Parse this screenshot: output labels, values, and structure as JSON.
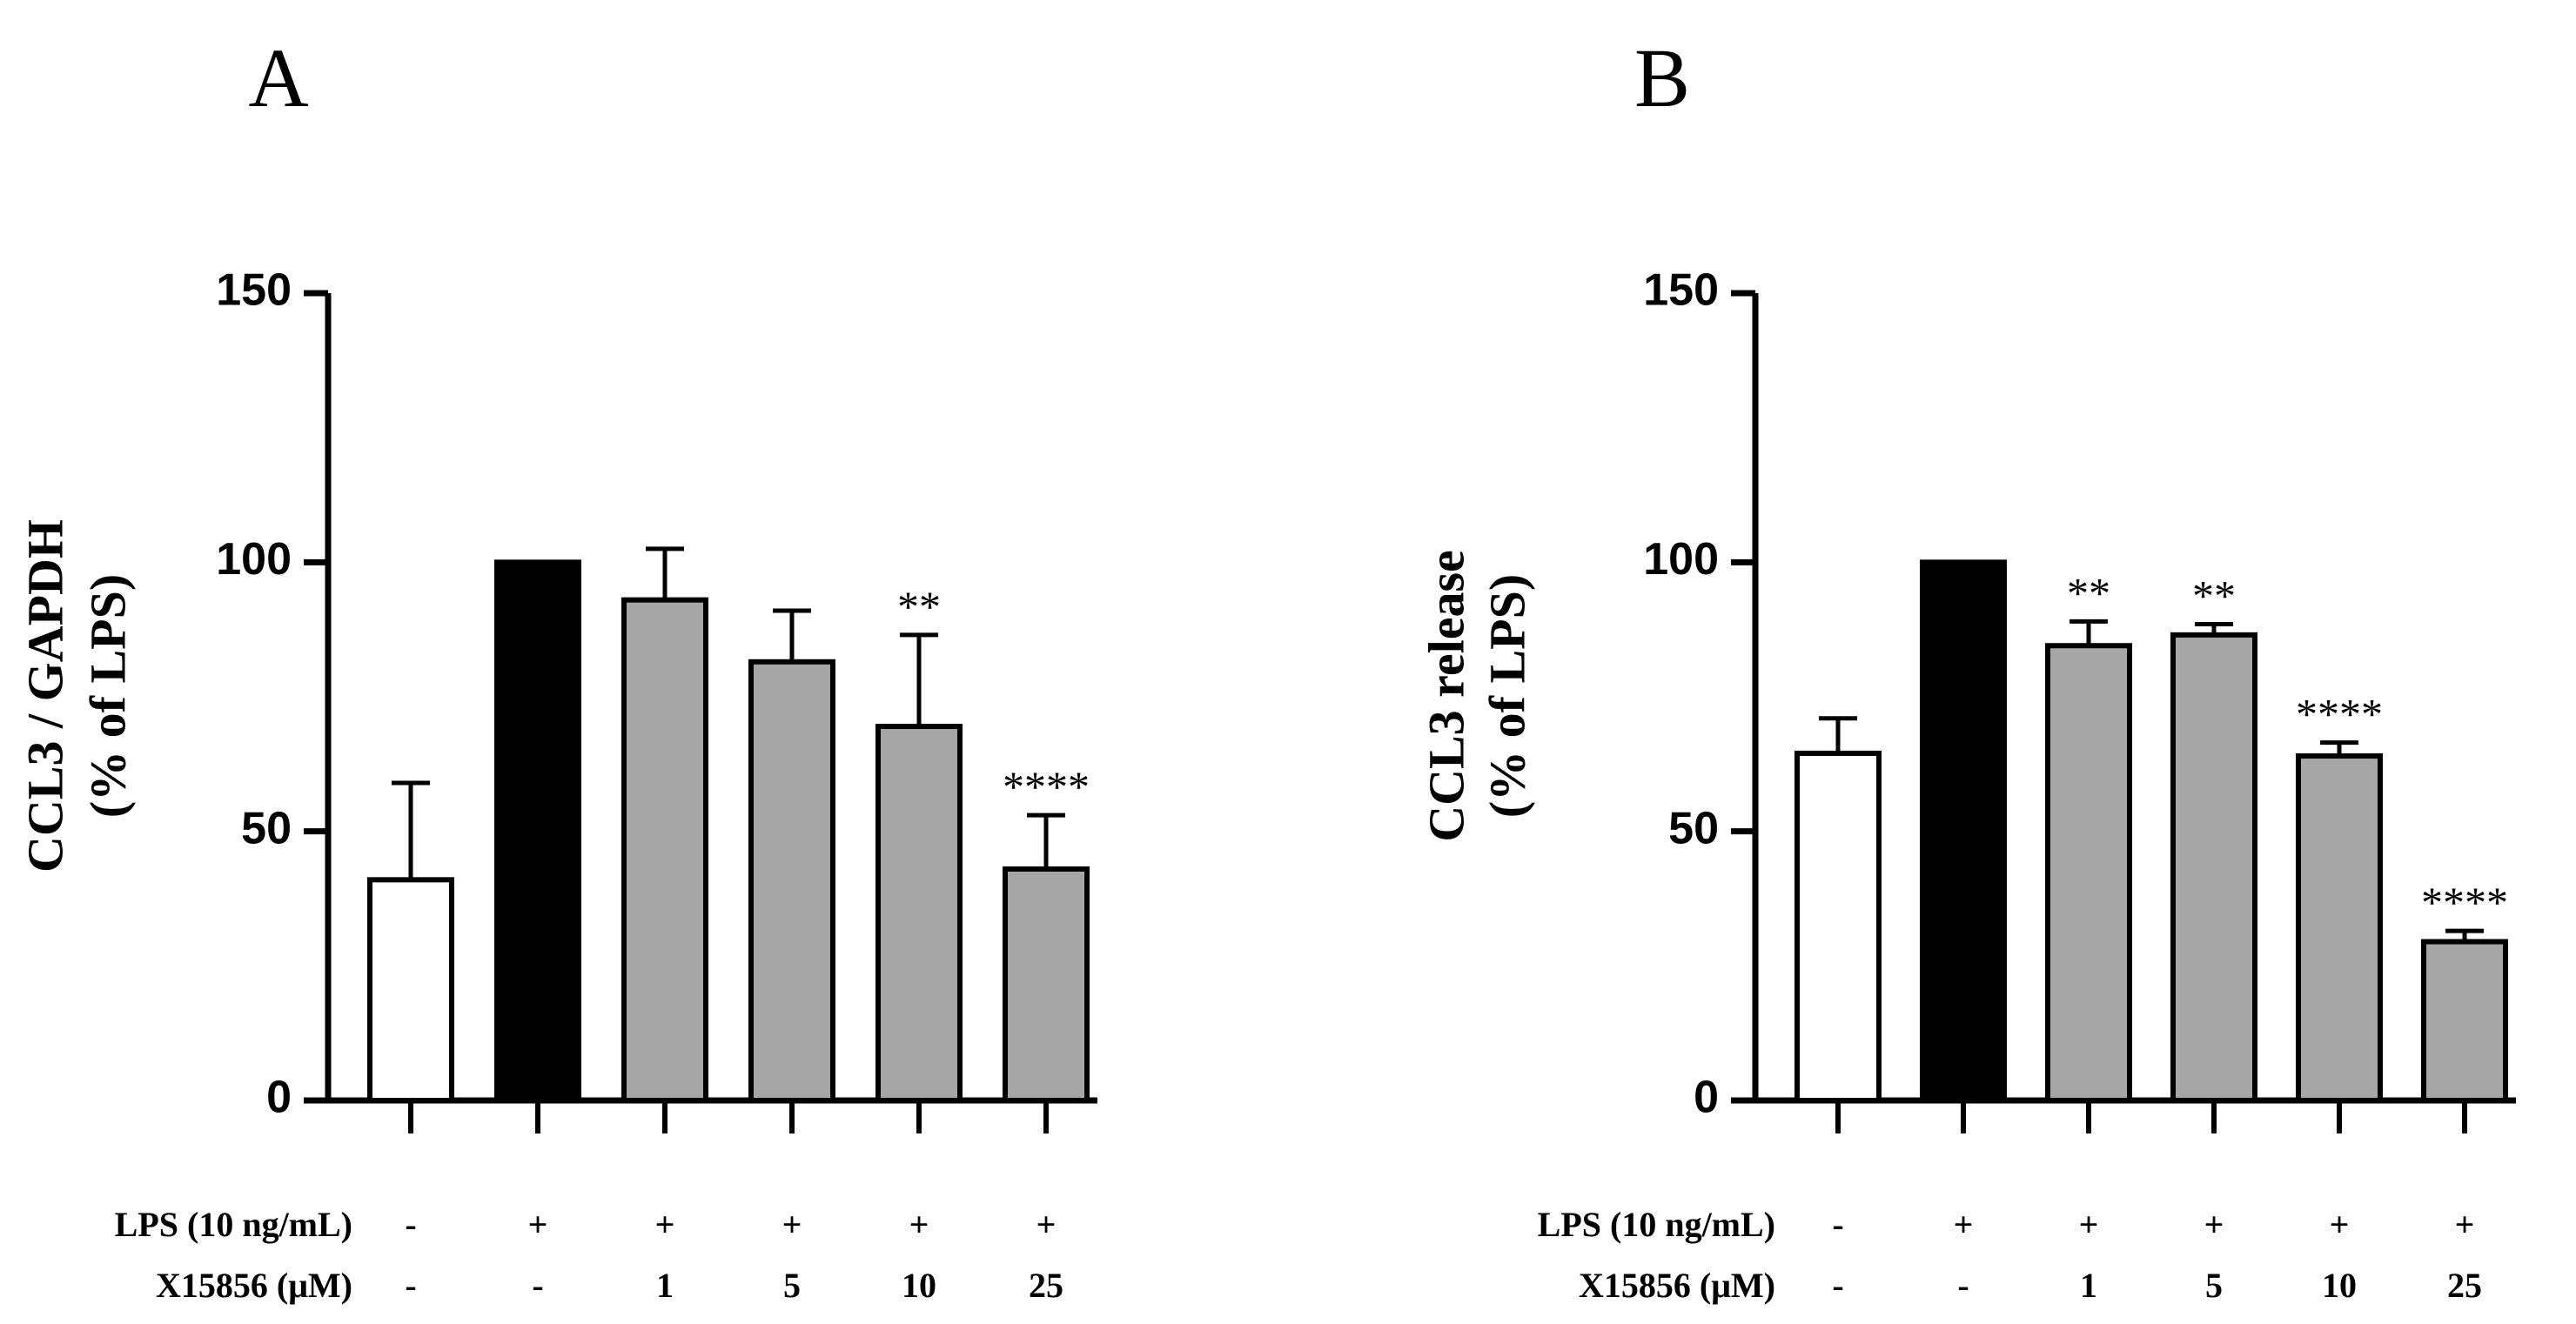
{
  "chart_data": [
    {
      "type": "bar",
      "panel": "A",
      "ylabel_line1": "CCL3 / GAPDH",
      "ylabel_line2": "(% of LPS)",
      "ylim": [
        0,
        150
      ],
      "yticks": [
        "0",
        "50",
        "100",
        "150"
      ],
      "ytick_values": [
        0,
        50,
        100,
        150
      ],
      "categories": [
        "-/-",
        "+/-",
        "+/1",
        "+/5",
        "+/10",
        "+/25"
      ],
      "values": [
        41,
        100,
        93,
        81.5,
        69.5,
        43
      ],
      "errors": [
        18,
        0,
        9.5,
        9.5,
        17,
        10
      ],
      "bar_colors": [
        "#ffffff",
        "#000000",
        "#a6a6a6",
        "#a6a6a6",
        "#a6a6a6",
        "#a6a6a6"
      ],
      "significance": [
        "",
        "",
        "",
        "",
        "**",
        "****"
      ],
      "conditions": [
        {
          "label": "LPS (10 ng/mL)",
          "values": [
            "-",
            "+",
            "+",
            "+",
            "+",
            "+"
          ]
        },
        {
          "label": "X15856 (μM)",
          "values": [
            "-",
            "-",
            "1",
            "5",
            "10",
            "25"
          ]
        }
      ]
    },
    {
      "type": "bar",
      "panel": "B",
      "ylabel_line1": "CCL3 release",
      "ylabel_line2": "(% of LPS)",
      "ylim": [
        0,
        150
      ],
      "yticks": [
        "0",
        "50",
        "100",
        "150"
      ],
      "ytick_values": [
        0,
        50,
        100,
        150
      ],
      "categories": [
        "-/-",
        "+/-",
        "+/1",
        "+/5",
        "+/10",
        "+/25"
      ],
      "values": [
        64.5,
        100,
        84.5,
        86.5,
        64,
        29.5
      ],
      "errors": [
        6.5,
        0,
        4.5,
        2,
        2.5,
        2
      ],
      "bar_colors": [
        "#ffffff",
        "#000000",
        "#a6a6a6",
        "#a6a6a6",
        "#a6a6a6",
        "#a6a6a6"
      ],
      "significance": [
        "",
        "",
        "**",
        "**",
        "****",
        "****"
      ],
      "conditions": [
        {
          "label": "LPS (10 ng/mL)",
          "values": [
            "-",
            "+",
            "+",
            "+",
            "+",
            "+"
          ]
        },
        {
          "label": "X15856 (μM)",
          "values": [
            "-",
            "-",
            "1",
            "5",
            "10",
            "25"
          ]
        }
      ]
    }
  ]
}
